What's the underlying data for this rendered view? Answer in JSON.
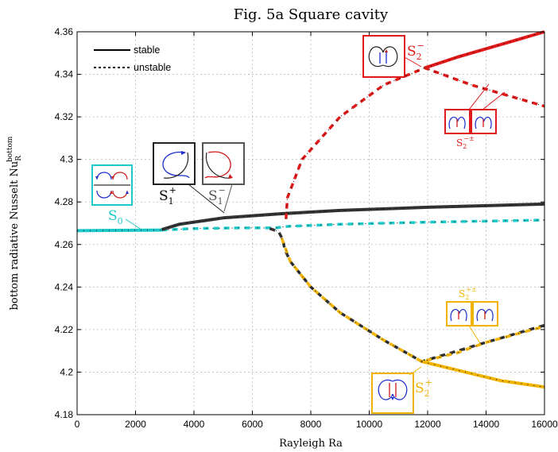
{
  "chart_data": {
    "type": "line",
    "title": "Fig. 5a     Square cavity",
    "xlabel": "Rayleigh Ra",
    "ylabel": "bottom radiative Nusselt   Nu",
    "ylabel_sub": "R",
    "ylabel_sup": "bottom",
    "xlim": [
      0,
      16000
    ],
    "ylim": [
      4.18,
      4.36
    ],
    "x_ticks": [
      0,
      2000,
      4000,
      6000,
      8000,
      10000,
      12000,
      14000,
      16000
    ],
    "y_ticks": [
      "4.18",
      "4.2",
      "4.22",
      "4.24",
      "4.26",
      "4.28",
      "4.3",
      "4.32",
      "4.34",
      "4.36"
    ],
    "grid": true,
    "legend": {
      "placement": "top-left",
      "entries": [
        {
          "label": "stable",
          "style": "solid"
        },
        {
          "label": "unstable",
          "style": "dashed"
        }
      ]
    },
    "colors": {
      "S0": "#1cc8c8",
      "S1": "#333333",
      "S2minus": "#e01a1a",
      "S2plus": "#f0b400"
    },
    "series": [
      {
        "key": "S0",
        "style": "solid",
        "points": [
          [
            0,
            4.2665
          ],
          [
            2900,
            4.2668
          ]
        ]
      },
      {
        "key": "S0",
        "style": "dashed",
        "points": [
          [
            2900,
            4.2668
          ],
          [
            4000,
            4.2675
          ],
          [
            5500,
            4.2678
          ],
          [
            6800,
            4.2678
          ],
          [
            7200,
            4.2685
          ],
          [
            9000,
            4.2695
          ],
          [
            12000,
            4.2705
          ],
          [
            16000,
            4.2715
          ]
        ]
      },
      {
        "key": "S1",
        "style": "solid",
        "points": [
          [
            2900,
            4.267
          ],
          [
            3500,
            4.2695
          ],
          [
            5000,
            4.2725
          ],
          [
            7000,
            4.2745
          ],
          [
            9000,
            4.276
          ],
          [
            12000,
            4.2775
          ],
          [
            16000,
            4.279
          ]
        ]
      },
      {
        "key": "S1",
        "style": "dashed",
        "points": [
          [
            6600,
            4.2675
          ],
          [
            6900,
            4.266
          ],
          [
            7050,
            4.262
          ],
          [
            7100,
            4.258
          ],
          [
            7300,
            4.252
          ],
          [
            8000,
            4.24
          ],
          [
            9000,
            4.228
          ],
          [
            10500,
            4.215
          ],
          [
            11800,
            4.205
          ],
          [
            14000,
            4.214
          ],
          [
            16000,
            4.222
          ]
        ]
      },
      {
        "key": "S2minus",
        "style": "dashed",
        "points": [
          [
            7150,
            4.272
          ],
          [
            7200,
            4.282
          ],
          [
            7700,
            4.3
          ],
          [
            9000,
            4.32
          ],
          [
            10500,
            4.335
          ],
          [
            11900,
            4.343
          ],
          [
            13500,
            4.335
          ],
          [
            16000,
            4.325
          ]
        ]
      },
      {
        "key": "S2minus",
        "style": "solid",
        "points": [
          [
            11900,
            4.343
          ],
          [
            13000,
            4.348
          ],
          [
            14500,
            4.354
          ],
          [
            16000,
            4.36
          ]
        ]
      },
      {
        "key": "S2plus",
        "style": "dashed",
        "points": [
          [
            7000,
            4.263
          ],
          [
            7300,
            4.252
          ],
          [
            8000,
            4.24
          ],
          [
            9000,
            4.228
          ],
          [
            10500,
            4.215
          ],
          [
            11800,
            4.205
          ],
          [
            13000,
            4.209
          ],
          [
            14000,
            4.214
          ],
          [
            16000,
            4.2215
          ]
        ]
      },
      {
        "key": "S2plus",
        "style": "solid",
        "points": [
          [
            11800,
            4.205
          ],
          [
            13000,
            4.201
          ],
          [
            14500,
            4.196
          ],
          [
            16000,
            4.193
          ]
        ]
      }
    ],
    "annotations": [
      {
        "key": "S0",
        "label": "S",
        "sub": "0",
        "sup": ""
      },
      {
        "key": "S1a",
        "label": "S",
        "sub": "1",
        "sup": "+"
      },
      {
        "key": "S1b",
        "label": "S",
        "sub": "1",
        "sup": "−"
      },
      {
        "key": "S2m",
        "label": "S",
        "sub": "2",
        "sup": "−"
      },
      {
        "key": "S2mpm",
        "label": "S",
        "sub": "2",
        "sup": "−±"
      },
      {
        "key": "S2p",
        "label": "S",
        "sub": "2",
        "sup": "+"
      },
      {
        "key": "S2ppm",
        "label": "S",
        "sub": "2",
        "sup": "+±"
      }
    ]
  }
}
